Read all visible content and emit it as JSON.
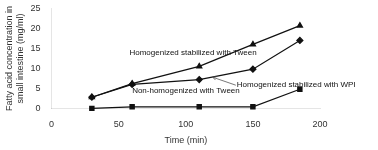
{
  "chart_data": {
    "type": "line",
    "x_label": "Time (min)",
    "y_label": "Fatty acid concentration in\nsmall intestine (mg/ml)",
    "x": [
      30,
      60,
      110,
      150,
      185
    ],
    "series": [
      {
        "name": "Homogenized stabilized with Tween",
        "color": "#111111",
        "marker": "triangle",
        "values": [
          2.8,
          6.2,
          10.5,
          16.0,
          20.7
        ]
      },
      {
        "name": "Homogenized stabilized with WPI",
        "color": "#111111",
        "marker": "diamond",
        "values": [
          2.8,
          6.0,
          7.2,
          9.8,
          17.0
        ]
      },
      {
        "name": "Non-homogenized with Tween",
        "color": "#111111",
        "marker": "square",
        "values": [
          0.0,
          0.4,
          0.4,
          0.4,
          4.8
        ]
      }
    ],
    "xlim": [
      0,
      200
    ],
    "ylim": [
      0,
      25
    ],
    "xticks": [
      0,
      50,
      100,
      150,
      200
    ],
    "yticks": [
      0,
      5,
      10,
      15,
      20,
      25
    ],
    "grid": false,
    "annotations": [
      {
        "text": "Homogenized stabilized with Tween",
        "x": 58,
        "y": 13.0
      },
      {
        "text": "Homogenized stabilized with WPI",
        "x": 138,
        "y": 6.8,
        "arrow_to": [
          120,
          7.8
        ]
      },
      {
        "text": "Non-homogenized with Tween",
        "x": 60,
        "y": 3.5
      }
    ]
  }
}
